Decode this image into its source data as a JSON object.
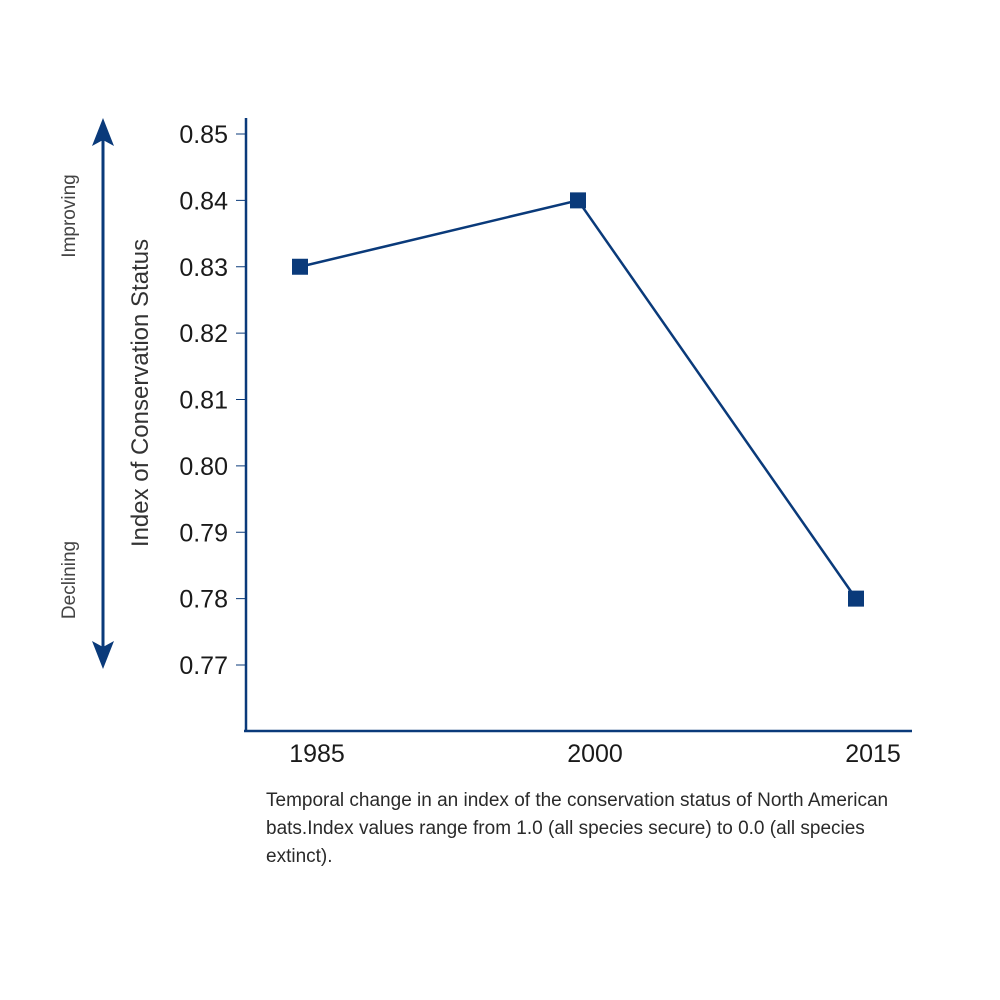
{
  "chart_data": {
    "type": "line",
    "categories": [
      "1985",
      "2000",
      "2015"
    ],
    "x": [
      1985,
      2000,
      2015
    ],
    "values": [
      0.83,
      0.84,
      0.78
    ],
    "ylabel": "Index of Conservation Status",
    "ylim": [
      0.76,
      0.852
    ],
    "yticks": [
      0.77,
      0.78,
      0.79,
      0.8,
      0.81,
      0.82,
      0.83,
      0.84,
      0.85
    ],
    "ytick_labels": [
      "0.77",
      "0.78",
      "0.79",
      "0.80",
      "0.81",
      "0.82",
      "0.83",
      "0.84",
      "0.85"
    ],
    "direction_labels": {
      "up": "Improving",
      "down": "Declining"
    },
    "grid": false,
    "legend": "none",
    "colors": {
      "series": "#0a3a7a",
      "axis": "#0a3a7a",
      "arrow": "#0a3a7a"
    }
  },
  "caption": "Temporal change in an index of the conservation status of North American bats.Index values range from 1.0 (all species secure) to 0.0 (all species extinct)."
}
